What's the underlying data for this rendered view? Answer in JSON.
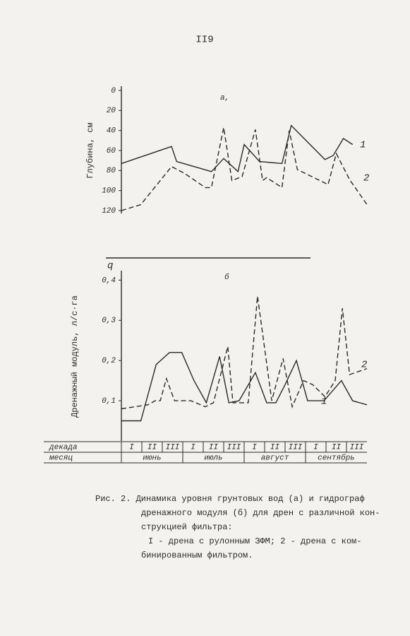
{
  "page_number": "II9",
  "chart_data": [
    {
      "type": "line",
      "panel_label": "а,",
      "y_label": "Глубина, см",
      "xlim": [
        0,
        12
      ],
      "ylim": [
        120,
        0
      ],
      "yticks": [
        0,
        20,
        40,
        60,
        80,
        100,
        120
      ],
      "series": [
        {
          "name": "1",
          "color": "#2a2a2a",
          "dashed": false,
          "x": [
            0,
            2.45,
            2.7,
            4.4,
            5.0,
            5.7,
            6.0,
            6.75,
            7.85,
            8.3,
            9.95,
            10.35,
            10.85,
            11.3
          ],
          "values": [
            73,
            56,
            71,
            81,
            68,
            81,
            54,
            71,
            73,
            35,
            69,
            65,
            48,
            54
          ]
        },
        {
          "name": "2",
          "color": "#2a2a2a",
          "dashed": true,
          "x": [
            0,
            0.95,
            2.45,
            3.1,
            4.1,
            4.4,
            5.0,
            5.4,
            5.9,
            6.55,
            6.9,
            7.1,
            7.85,
            8.2,
            8.6,
            10.1,
            10.5,
            11.15,
            12
          ],
          "values": [
            120,
            114,
            76,
            83,
            97,
            97,
            37,
            90,
            86,
            39,
            90,
            87,
            97,
            40,
            79,
            94,
            63,
            89,
            114
          ]
        }
      ]
    },
    {
      "type": "line",
      "panel_label": "б",
      "y_symbol": "q",
      "y_label": "Дренажный модуль, л/с·га",
      "xlim": [
        0,
        12
      ],
      "ylim": [
        0,
        0.42
      ],
      "yticks": [
        {
          "value": 0.1,
          "label": "0,1"
        },
        {
          "value": 0.2,
          "label": "0,2"
        },
        {
          "value": 0.3,
          "label": "0,3"
        },
        {
          "value": 0.4,
          "label": "0,4"
        }
      ],
      "series": [
        {
          "name": "1",
          "color": "#2a2a2a",
          "dashed": false,
          "x": [
            0,
            0.95,
            1.7,
            2.35,
            2.95,
            3.55,
            4.15,
            4.8,
            5.25,
            5.75,
            6.55,
            7.1,
            7.55,
            8.0,
            8.55,
            9.1,
            9.9,
            10.75,
            11.3,
            12
          ],
          "values": [
            0.05,
            0.05,
            0.19,
            0.22,
            0.22,
            0.15,
            0.095,
            0.21,
            0.095,
            0.1,
            0.17,
            0.095,
            0.095,
            0.14,
            0.2,
            0.1,
            0.1,
            0.15,
            0.1,
            0.09
          ]
        },
        {
          "name": "2",
          "color": "#2a2a2a",
          "dashed": true,
          "x": [
            0,
            1.3,
            1.65,
            1.9,
            2.2,
            2.6,
            3.4,
            4.1,
            4.5,
            5.2,
            5.45,
            6.2,
            6.65,
            7.35,
            7.9,
            8.35,
            8.9,
            9.35,
            9.95,
            10.45,
            10.8,
            11.15,
            12
          ],
          "values": [
            0.08,
            0.09,
            0.1,
            0.1,
            0.155,
            0.1,
            0.1,
            0.085,
            0.095,
            0.235,
            0.095,
            0.095,
            0.36,
            0.1,
            0.205,
            0.085,
            0.15,
            0.14,
            0.11,
            0.15,
            0.33,
            0.165,
            0.18
          ]
        }
      ]
    }
  ],
  "table": {
    "rows": [
      {
        "header": "декада",
        "cells": [
          "I",
          "II",
          "III",
          "I",
          "II",
          "III",
          "I",
          "II",
          "III",
          "I",
          "II",
          "III"
        ]
      },
      {
        "header": "месяц",
        "cells": [
          "июнь",
          "июль",
          "август",
          "сентябрь"
        ]
      }
    ]
  },
  "caption": [
    "Рис. 2. Динамика уровня грунтовых вод (а) и гидрограф",
    "дренажного модуля (б) для дрен с различной кон-",
    "струкцией фильтра:",
    "I - дрена с рулонным ЗФМ; 2 - дрена с ком-",
    "бинированным фильтром."
  ]
}
